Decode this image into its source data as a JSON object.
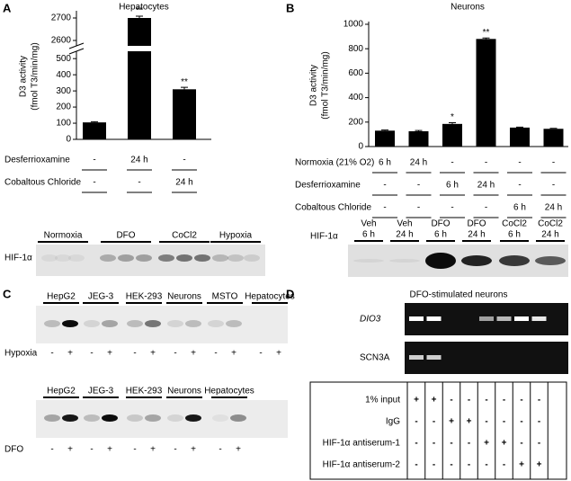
{
  "panels": [
    "A",
    "B",
    "C",
    "D"
  ],
  "chart_data": [
    {
      "type": "bar",
      "title": "Hepatocytes",
      "ylabel": [
        "D3 activity",
        "(fmol T3/min/mg)"
      ],
      "values": [
        105,
        2700,
        310
      ],
      "errors": [
        4,
        8,
        12
      ],
      "significance": [
        null,
        "**",
        "**"
      ],
      "color": "#000000",
      "ylim": [
        0,
        2720
      ],
      "axis_break": [
        540,
        2580
      ],
      "yticks": [
        0,
        100,
        200,
        300,
        400,
        500,
        2600,
        2700
      ],
      "conditions": [
        {
          "label": "Desferrioxamine",
          "cells": [
            "-",
            "24 h",
            "-"
          ]
        },
        {
          "label": "Cobaltous Chloride",
          "cells": [
            "-",
            "-",
            "24 h"
          ]
        }
      ]
    },
    {
      "type": "bar",
      "title": "Neurons",
      "ylabel": [
        "D3 activity",
        "(fmol T3/min/mg)"
      ],
      "values": [
        130,
        125,
        185,
        880,
        155,
        145
      ],
      "errors": [
        5,
        6,
        10,
        8,
        4,
        4
      ],
      "significance": [
        null,
        null,
        "*",
        "**",
        null,
        null
      ],
      "color": "#000000",
      "ylim": [
        0,
        1000
      ],
      "yticks": [
        0,
        200,
        400,
        600,
        800,
        1000
      ],
      "conditions": [
        {
          "label": "Normoxia (21% O2)",
          "cells": [
            "6 h",
            "24 h",
            "-",
            "-",
            "-",
            "-"
          ]
        },
        {
          "label": "Desferrioxamine",
          "cells": [
            "-",
            "-",
            "6 h",
            "24 h",
            "-",
            "-"
          ]
        },
        {
          "label": "Cobaltous Chloride",
          "cells": [
            "-",
            "-",
            "-",
            "-",
            "6 h",
            "24 h"
          ]
        }
      ]
    }
  ],
  "blot_a": {
    "protein": "HIF-1α",
    "lanes": [
      "Normoxia",
      "DFO",
      "CoCl2",
      "Hypoxia"
    ]
  },
  "blot_b": {
    "protein": "HIF-1α",
    "lanes": [
      [
        "Veh",
        "6 h"
      ],
      [
        "Veh",
        "24 h"
      ],
      [
        "DFO",
        "6 h"
      ],
      [
        "DFO",
        "24 h"
      ],
      [
        "CoCl2",
        "6 h"
      ],
      [
        "CoCl2",
        "24 h"
      ]
    ]
  },
  "blot_c1": {
    "lanes": [
      "HepG2",
      "JEG-3",
      "HEK-293",
      "Neurons",
      "MSTO",
      "Hepatocytes"
    ],
    "treatment": "Hypoxia",
    "signs": [
      "-",
      "+",
      "-",
      "+",
      "-",
      "+",
      "-",
      "+",
      "-",
      "+",
      "-",
      "+"
    ]
  },
  "blot_c2": {
    "lanes": [
      "HepG2",
      "JEG-3",
      "HEK-293",
      "Neurons",
      "Hepatocytes"
    ],
    "treatment": "DFO",
    "signs": [
      "-",
      "+",
      "-",
      "+",
      "-",
      "+",
      "-",
      "+",
      "-",
      "+"
    ]
  },
  "chip_d": {
    "title": "DFO-stimulated neurons",
    "genes": [
      "DIO3",
      "SCN3A"
    ],
    "rows": [
      {
        "label": "1% input",
        "cells": [
          "+",
          "+",
          "-",
          "-",
          "-",
          "-",
          "-",
          "-"
        ]
      },
      {
        "label": "IgG",
        "cells": [
          "-",
          "-",
          "+",
          "+",
          "-",
          "-",
          "-",
          "-"
        ]
      },
      {
        "label": "HIF-1α antiserum-1",
        "cells": [
          "-",
          "-",
          "-",
          "-",
          "+",
          "+",
          "-",
          "-"
        ]
      },
      {
        "label": "HIF-1α antiserum-2",
        "cells": [
          "-",
          "-",
          "-",
          "-",
          "-",
          "-",
          "+",
          "+"
        ]
      }
    ]
  }
}
